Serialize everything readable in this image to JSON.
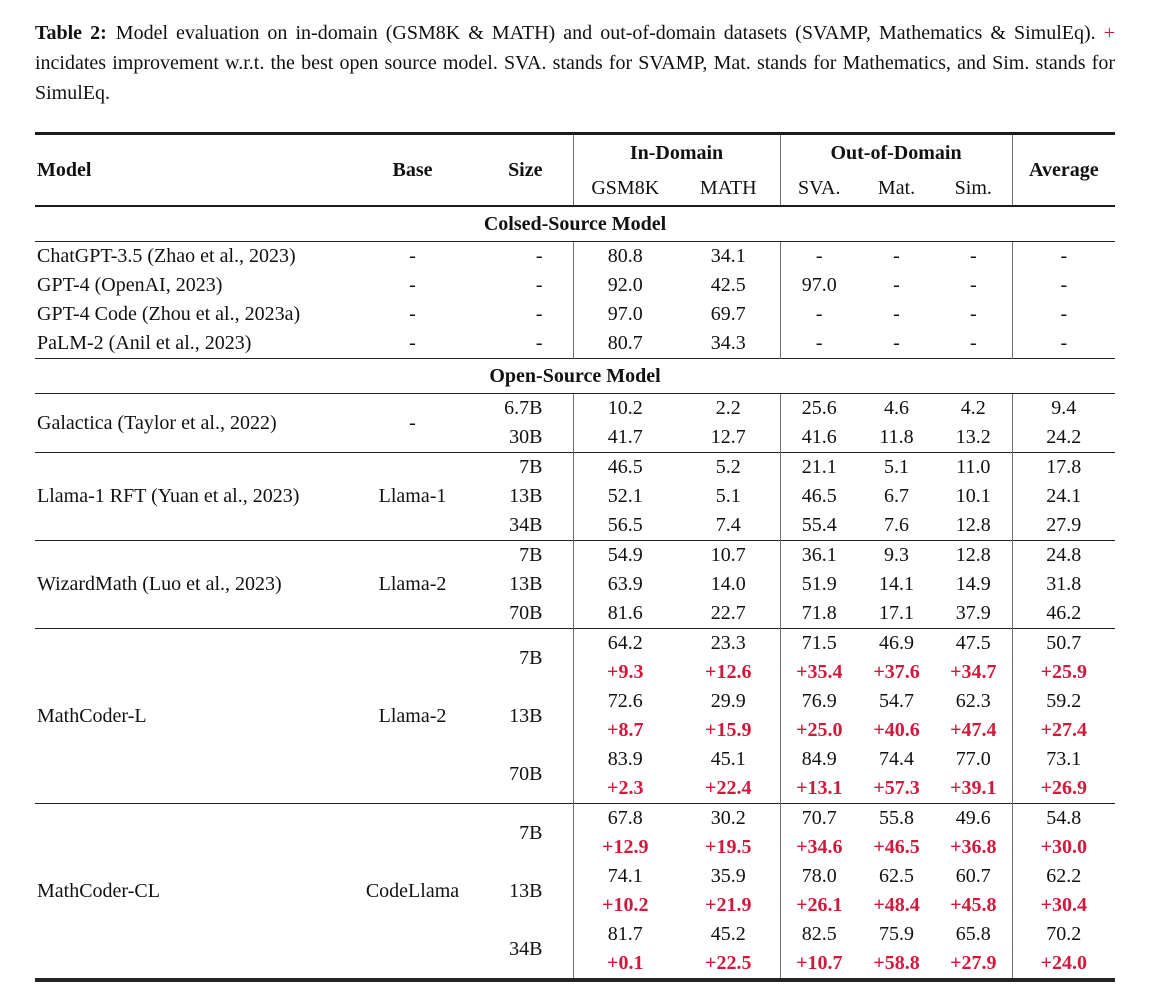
{
  "colors": {
    "gain_red": "#d2193c"
  },
  "caption": {
    "label": "Table 2:",
    "body_before_plus": "Model evaluation on in-domain (GSM8K & MATH) and out-of-domain datasets (SVAMP, Mathematics & SimulEq).",
    "plus": "+",
    "body_after_plus": "incidates improvement w.r.t. the best open source model. SVA. stands for SVAMP, Mat. stands for Mathematics, and Sim. stands for SimulEq."
  },
  "table": {
    "columns": [
      "Model",
      "Base",
      "Size",
      "GSM8K",
      "MATH",
      "SVA.",
      "Mat.",
      "Sim.",
      "Average"
    ],
    "column_keys": [
      "gsm8k",
      "math",
      "sva",
      "mat",
      "sim",
      "average"
    ],
    "group_headers": [
      {
        "label": "In-Domain",
        "span": 2
      },
      {
        "label": "Out-of-Domain",
        "span": 3
      }
    ],
    "sections": [
      {
        "title": "Colsed-Source Model",
        "separators": false,
        "blocks": [
          {
            "model": "ChatGPT-3.5 (Zhao et al., 2023)",
            "base": "-",
            "rows": [
              {
                "size": "-",
                "values": [
                  "80.8",
                  "34.1",
                  "-",
                  "-",
                  "-",
                  "-"
                ]
              }
            ]
          },
          {
            "model": "GPT-4 (OpenAI, 2023)",
            "base": "-",
            "rows": [
              {
                "size": "-",
                "values": [
                  "92.0",
                  "42.5",
                  "97.0",
                  "-",
                  "-",
                  "-"
                ]
              }
            ]
          },
          {
            "model": "GPT-4 Code (Zhou et al., 2023a)",
            "base": "-",
            "rows": [
              {
                "size": "-",
                "values": [
                  "97.0",
                  "69.7",
                  "-",
                  "-",
                  "-",
                  "-"
                ]
              }
            ]
          },
          {
            "model": "PaLM-2 (Anil et al., 2023)",
            "base": "-",
            "rows": [
              {
                "size": "-",
                "values": [
                  "80.7",
                  "34.3",
                  "-",
                  "-",
                  "-",
                  "-"
                ]
              }
            ]
          }
        ]
      },
      {
        "title": "Open-Source Model",
        "separators": true,
        "blocks": [
          {
            "model": "Galactica (Taylor et al., 2022)",
            "base": "-",
            "rows": [
              {
                "size": "6.7B",
                "values": [
                  "10.2",
                  "2.2",
                  "25.6",
                  "4.6",
                  "4.2",
                  "9.4"
                ]
              },
              {
                "size": "30B",
                "values": [
                  "41.7",
                  "12.7",
                  "41.6",
                  "11.8",
                  "13.2",
                  "24.2"
                ]
              }
            ]
          },
          {
            "model": "Llama-1 RFT (Yuan et al., 2023)",
            "base": "Llama-1",
            "rows": [
              {
                "size": "7B",
                "values": [
                  "46.5",
                  "5.2",
                  "21.1",
                  "5.1",
                  "11.0",
                  "17.8"
                ]
              },
              {
                "size": "13B",
                "values": [
                  "52.1",
                  "5.1",
                  "46.5",
                  "6.7",
                  "10.1",
                  "24.1"
                ]
              },
              {
                "size": "34B",
                "values": [
                  "56.5",
                  "7.4",
                  "55.4",
                  "7.6",
                  "12.8",
                  "27.9"
                ]
              }
            ]
          },
          {
            "model": "WizardMath (Luo et al., 2023)",
            "base": "Llama-2",
            "rows": [
              {
                "size": "7B",
                "values": [
                  "54.9",
                  "10.7",
                  "36.1",
                  "9.3",
                  "12.8",
                  "24.8"
                ]
              },
              {
                "size": "13B",
                "values": [
                  "63.9",
                  "14.0",
                  "51.9",
                  "14.1",
                  "14.9",
                  "31.8"
                ]
              },
              {
                "size": "70B",
                "values": [
                  "81.6",
                  "22.7",
                  "71.8",
                  "17.1",
                  "37.9",
                  "46.2"
                ]
              }
            ]
          },
          {
            "model": "MathCoder-L",
            "base": "Llama-2",
            "rows": [
              {
                "size": "7B",
                "values": [
                  "64.2",
                  "23.3",
                  "71.5",
                  "46.9",
                  "47.5",
                  "50.7"
                ],
                "gains": [
                  "+9.3",
                  "+12.6",
                  "+35.4",
                  "+37.6",
                  "+34.7",
                  "+25.9"
                ]
              },
              {
                "size": "13B",
                "values": [
                  "72.6",
                  "29.9",
                  "76.9",
                  "54.7",
                  "62.3",
                  "59.2"
                ],
                "gains": [
                  "+8.7",
                  "+15.9",
                  "+25.0",
                  "+40.6",
                  "+47.4",
                  "+27.4"
                ]
              },
              {
                "size": "70B",
                "values": [
                  "83.9",
                  "45.1",
                  "84.9",
                  "74.4",
                  "77.0",
                  "73.1"
                ],
                "gains": [
                  "+2.3",
                  "+22.4",
                  "+13.1",
                  "+57.3",
                  "+39.1",
                  "+26.9"
                ]
              }
            ]
          },
          {
            "model": "MathCoder-CL",
            "base": "CodeLlama",
            "rows": [
              {
                "size": "7B",
                "values": [
                  "67.8",
                  "30.2",
                  "70.7",
                  "55.8",
                  "49.6",
                  "54.8"
                ],
                "gains": [
                  "+12.9",
                  "+19.5",
                  "+34.6",
                  "+46.5",
                  "+36.8",
                  "+30.0"
                ]
              },
              {
                "size": "13B",
                "values": [
                  "74.1",
                  "35.9",
                  "78.0",
                  "62.5",
                  "60.7",
                  "62.2"
                ],
                "gains": [
                  "+10.2",
                  "+21.9",
                  "+26.1",
                  "+48.4",
                  "+45.8",
                  "+30.4"
                ]
              },
              {
                "size": "34B",
                "values": [
                  "81.7",
                  "45.2",
                  "82.5",
                  "75.9",
                  "65.8",
                  "70.2"
                ],
                "gains": [
                  "+0.1",
                  "+22.5",
                  "+10.7",
                  "+58.8",
                  "+27.9",
                  "+24.0"
                ]
              }
            ]
          }
        ]
      }
    ]
  }
}
